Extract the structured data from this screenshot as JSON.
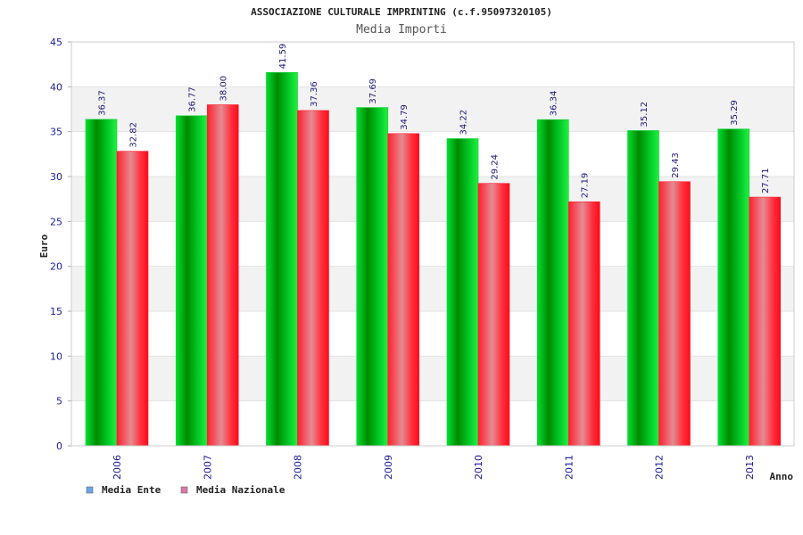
{
  "chart_data": {
    "type": "bar",
    "title": "ASSOCIAZIONE CULTURALE IMPRINTING (c.f.95097320105)",
    "subtitle": "Media Importi",
    "xlabel": "Anno",
    "ylabel": "Euro",
    "ylim": [
      0,
      45
    ],
    "yticks": [
      0,
      5,
      10,
      15,
      20,
      25,
      30,
      35,
      40,
      45
    ],
    "categories": [
      "2006",
      "2007",
      "2008",
      "2009",
      "2010",
      "2011",
      "2012",
      "2013"
    ],
    "series": [
      {
        "name": "Media Ente",
        "values": [
          36.37,
          36.77,
          41.59,
          37.69,
          34.22,
          36.34,
          35.12,
          35.29
        ],
        "labels": [
          "36.37",
          "36.77",
          "41.59",
          "37.69",
          "34.22",
          "36.34",
          "35.12",
          "35.29"
        ],
        "color": "#00c020",
        "legend_color": "#6aa5e8"
      },
      {
        "name": "Media Nazionale",
        "values": [
          32.82,
          38.0,
          37.36,
          34.79,
          29.24,
          27.19,
          29.43,
          27.71
        ],
        "labels": [
          "32.82",
          "38.00",
          "37.36",
          "34.79",
          "29.24",
          "27.19",
          "29.43",
          "27.71"
        ],
        "color": "#ff1a2a",
        "legend_color": "#d87aa8"
      }
    ],
    "grid": true,
    "legend_position": "bottom-left"
  }
}
